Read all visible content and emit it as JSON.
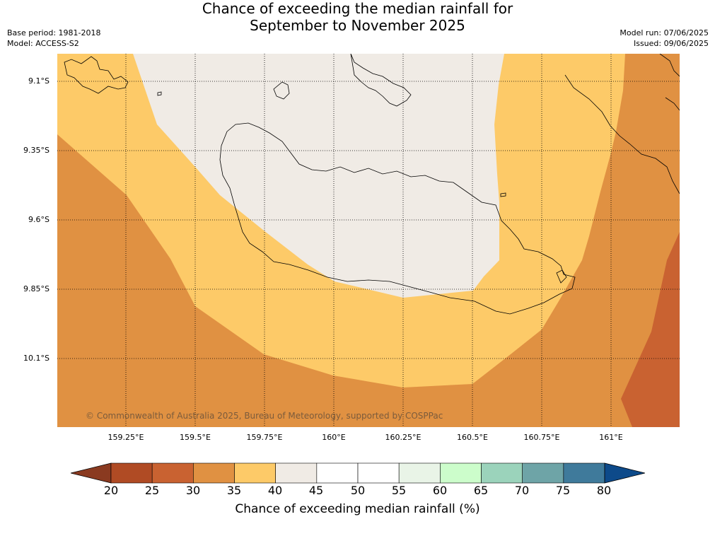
{
  "header": {
    "title_line1": "Chance of exceeding the median rainfall for",
    "title_line2": "September to November 2025",
    "base_period": "Base period: 1981-2018",
    "model": "Model: ACCESS-S2",
    "model_run": "Model run: 07/06/2025",
    "issued": "Issued: 09/06/2025"
  },
  "map": {
    "lat_labels": [
      "9.1°S",
      "9.35°S",
      "9.6°S",
      "9.85°S",
      "10.1°S"
    ],
    "lon_labels": [
      "159.25°E",
      "159.5°E",
      "159.75°E",
      "160°E",
      "160.25°E",
      "160.5°E",
      "160.75°E",
      "161°E"
    ],
    "copyright": "© Commonwealth of Australia 2025, Bureau of Meteorology, supported by COSPPac",
    "gridlines": "dotted"
  },
  "colorbar": {
    "ticks": [
      "20",
      "25",
      "30",
      "35",
      "40",
      "45",
      "50",
      "55",
      "60",
      "65",
      "70",
      "75",
      "80"
    ],
    "colors": [
      "#b04b24",
      "#c96231",
      "#e09142",
      "#fdca68",
      "#f0ebe5",
      "#ffffff",
      "#ffffff",
      "#e9f4e7",
      "#ccfdcb",
      "#9bd3bb",
      "#6ea4a7",
      "#3f7a9b"
    ],
    "under_color": "#8a3a20",
    "over_color": "#0d4a8a",
    "label": "Chance of exceeding median rainfall (%)"
  }
}
